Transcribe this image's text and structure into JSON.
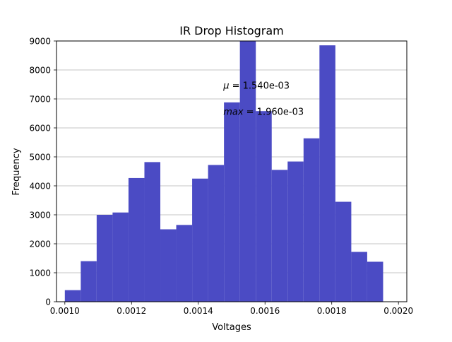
{
  "chart_data": {
    "type": "bar",
    "title": "IR Drop Histogram",
    "xlabel": "Voltages",
    "ylabel": "Frequency",
    "xlim": [
      0.000975,
      0.002025
    ],
    "ylim": [
      0,
      9000
    ],
    "x_ticks": [
      0.001,
      0.0012,
      0.0014,
      0.0016,
      0.0018,
      0.002
    ],
    "x_tick_labels": [
      "0.0010",
      "0.0012",
      "0.0014",
      "0.0016",
      "0.0018",
      "0.0020"
    ],
    "y_ticks": [
      0,
      1000,
      2000,
      3000,
      4000,
      5000,
      6000,
      7000,
      8000,
      9000
    ],
    "y_tick_labels": [
      "0",
      "1000",
      "2000",
      "3000",
      "4000",
      "5000",
      "6000",
      "7000",
      "8000",
      "9000"
    ],
    "grid": "horizontal",
    "bar_color": "#4b4bc4",
    "bins": {
      "start": 0.001,
      "width": 4.77e-05,
      "counts": [
        400,
        1400,
        3000,
        3080,
        4270,
        4820,
        2500,
        2650,
        4250,
        4720,
        6880,
        9000,
        6580,
        4550,
        4840,
        5640,
        8850,
        3450,
        1720,
        1380
      ]
    },
    "annotations": [
      {
        "symbol": "μ",
        "text": " = 1.540e-03",
        "x": 0.001475,
        "y": 6620
      },
      {
        "symbol": "max",
        "text": " = 1.960e-03",
        "x": 0.001475,
        "y": 5720
      }
    ]
  }
}
